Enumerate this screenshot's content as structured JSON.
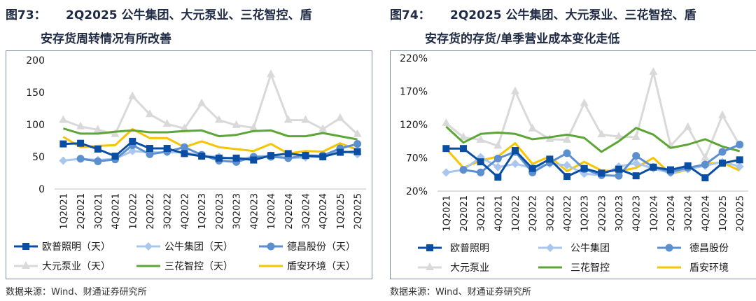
{
  "colors": {
    "欧普照明": "#0a4ea3",
    "公牛集团": "#a9c6ef",
    "德昌股份": "#5b8fd0",
    "大元泵业": "#d9d9d9",
    "三花智控": "#5ca636",
    "盾安环境": "#f7c400"
  },
  "chart_data": [
    {
      "type": "line",
      "figure_label": "图73：",
      "title_line1": "2Q2025 公牛集团、大元泵业、三花智控、盾",
      "title_line2": "安存货周转情况有所改善",
      "source": "数据来源：Wind、财通证券研究所",
      "ylabel": "天",
      "ylim": [
        0,
        200
      ],
      "yticks": [
        0,
        50,
        100,
        150,
        200
      ],
      "ytick_labels": [
        "0",
        "50",
        "100",
        "150",
        "200"
      ],
      "categories": [
        "1Q2021",
        "2Q2021",
        "3Q2021",
        "4Q2021",
        "1Q2022",
        "2Q2022",
        "3Q2022",
        "4Q2022",
        "1Q2023",
        "2Q2023",
        "3Q2023",
        "4Q2023",
        "1Q2024",
        "2Q2024",
        "3Q2024",
        "4Q2024",
        "1Q2025",
        "2Q2025"
      ],
      "series": [
        {
          "name": "欧普照明（天）",
          "key": "欧普照明",
          "marker": "square",
          "values": [
            70,
            71,
            62,
            51,
            74,
            63,
            63,
            55,
            51,
            48,
            48,
            45,
            52,
            55,
            52,
            50,
            57,
            58
          ]
        },
        {
          "name": "公牛集团（天）",
          "key": "公牛集团",
          "marker": "diamond",
          "values": [
            44,
            47,
            45,
            47,
            59,
            57,
            57,
            57,
            52,
            50,
            46,
            50,
            52,
            48,
            49,
            50,
            60,
            54
          ]
        },
        {
          "name": "德昌股份（天）",
          "key": "德昌股份",
          "marker": "circle",
          "values": [
            null,
            47,
            43,
            46,
            68,
            54,
            58,
            65,
            53,
            44,
            42,
            50,
            50,
            48,
            52,
            52,
            63,
            70
          ]
        },
        {
          "name": "大元泵业（天）",
          "key": "大元泵业",
          "marker": "triangle",
          "values": [
            107,
            97,
            92,
            85,
            144,
            116,
            101,
            94,
            133,
            107,
            99,
            95,
            178,
            107,
            107,
            93,
            110,
            85
          ]
        },
        {
          "name": "三花智控（天）",
          "key": "三花智控",
          "marker": "none",
          "values": [
            94,
            86,
            86,
            89,
            91,
            88,
            88,
            90,
            91,
            82,
            84,
            90,
            91,
            82,
            82,
            87,
            82,
            77
          ]
        },
        {
          "name": "盾安环境（天）",
          "key": "盾安环境",
          "marker": "none",
          "values": [
            81,
            65,
            67,
            68,
            93,
            79,
            79,
            65,
            74,
            65,
            62,
            59,
            70,
            55,
            59,
            58,
            71,
            61
          ]
        }
      ]
    },
    {
      "type": "line",
      "figure_label": "图74：",
      "title_line1": "2Q2025 公牛集团、大元泵业、三花智控、盾",
      "title_line2": "安存货的存货/单季营业成本变化走低",
      "source": "数据来源：Wind、财通证券研究所",
      "ylabel": "%",
      "ylim": [
        20,
        220
      ],
      "yticks": [
        20,
        70,
        120,
        170,
        220
      ],
      "ytick_labels": [
        "20%",
        "70%",
        "120%",
        "170%",
        "220%"
      ],
      "categories": [
        "1Q2021",
        "2Q2021",
        "3Q2021",
        "4Q2021",
        "1Q2022",
        "2Q2022",
        "3Q2022",
        "4Q2022",
        "1Q2023",
        "2Q2023",
        "3Q2023",
        "4Q2023",
        "1Q2024",
        "2Q2024",
        "3Q2024",
        "4Q2024",
        "1Q2025",
        "2Q2025"
      ],
      "series": [
        {
          "name": "欧普照明",
          "key": "欧普照明",
          "marker": "square",
          "values": [
            84,
            84,
            64,
            41,
            81,
            54,
            68,
            42,
            54,
            47,
            53,
            43,
            56,
            52,
            58,
            40,
            62,
            67
          ]
        },
        {
          "name": "公牛集团",
          "key": "公牛集团",
          "marker": "diamond",
          "values": [
            48,
            52,
            71,
            56,
            61,
            55,
            61,
            59,
            46,
            44,
            57,
            62,
            54,
            47,
            53,
            58,
            64,
            57
          ]
        },
        {
          "name": "德昌股份",
          "key": "德昌股份",
          "marker": "circle",
          "values": [
            null,
            52,
            48,
            69,
            79,
            48,
            63,
            77,
            53,
            44,
            43,
            73,
            56,
            49,
            55,
            60,
            79,
            90
          ]
        },
        {
          "name": "大元泵业",
          "key": "大元泵业",
          "marker": "triangle",
          "values": [
            122,
            101,
            97,
            88,
            170,
            114,
            98,
            97,
            152,
            105,
            102,
            101,
            199,
            88,
            116,
            70,
            134,
            89
          ]
        },
        {
          "name": "三花智控",
          "key": "三花智控",
          "marker": "none",
          "values": [
            117,
            93,
            106,
            108,
            106,
            98,
            101,
            105,
            100,
            79,
            95,
            115,
            105,
            85,
            90,
            98,
            87,
            80
          ]
        },
        {
          "name": "盾安环境",
          "key": "盾安环境",
          "marker": "none",
          "values": [
            84,
            55,
            66,
            72,
            92,
            61,
            72,
            50,
            64,
            51,
            50,
            55,
            70,
            46,
            52,
            61,
            63,
            51
          ]
        }
      ]
    }
  ]
}
